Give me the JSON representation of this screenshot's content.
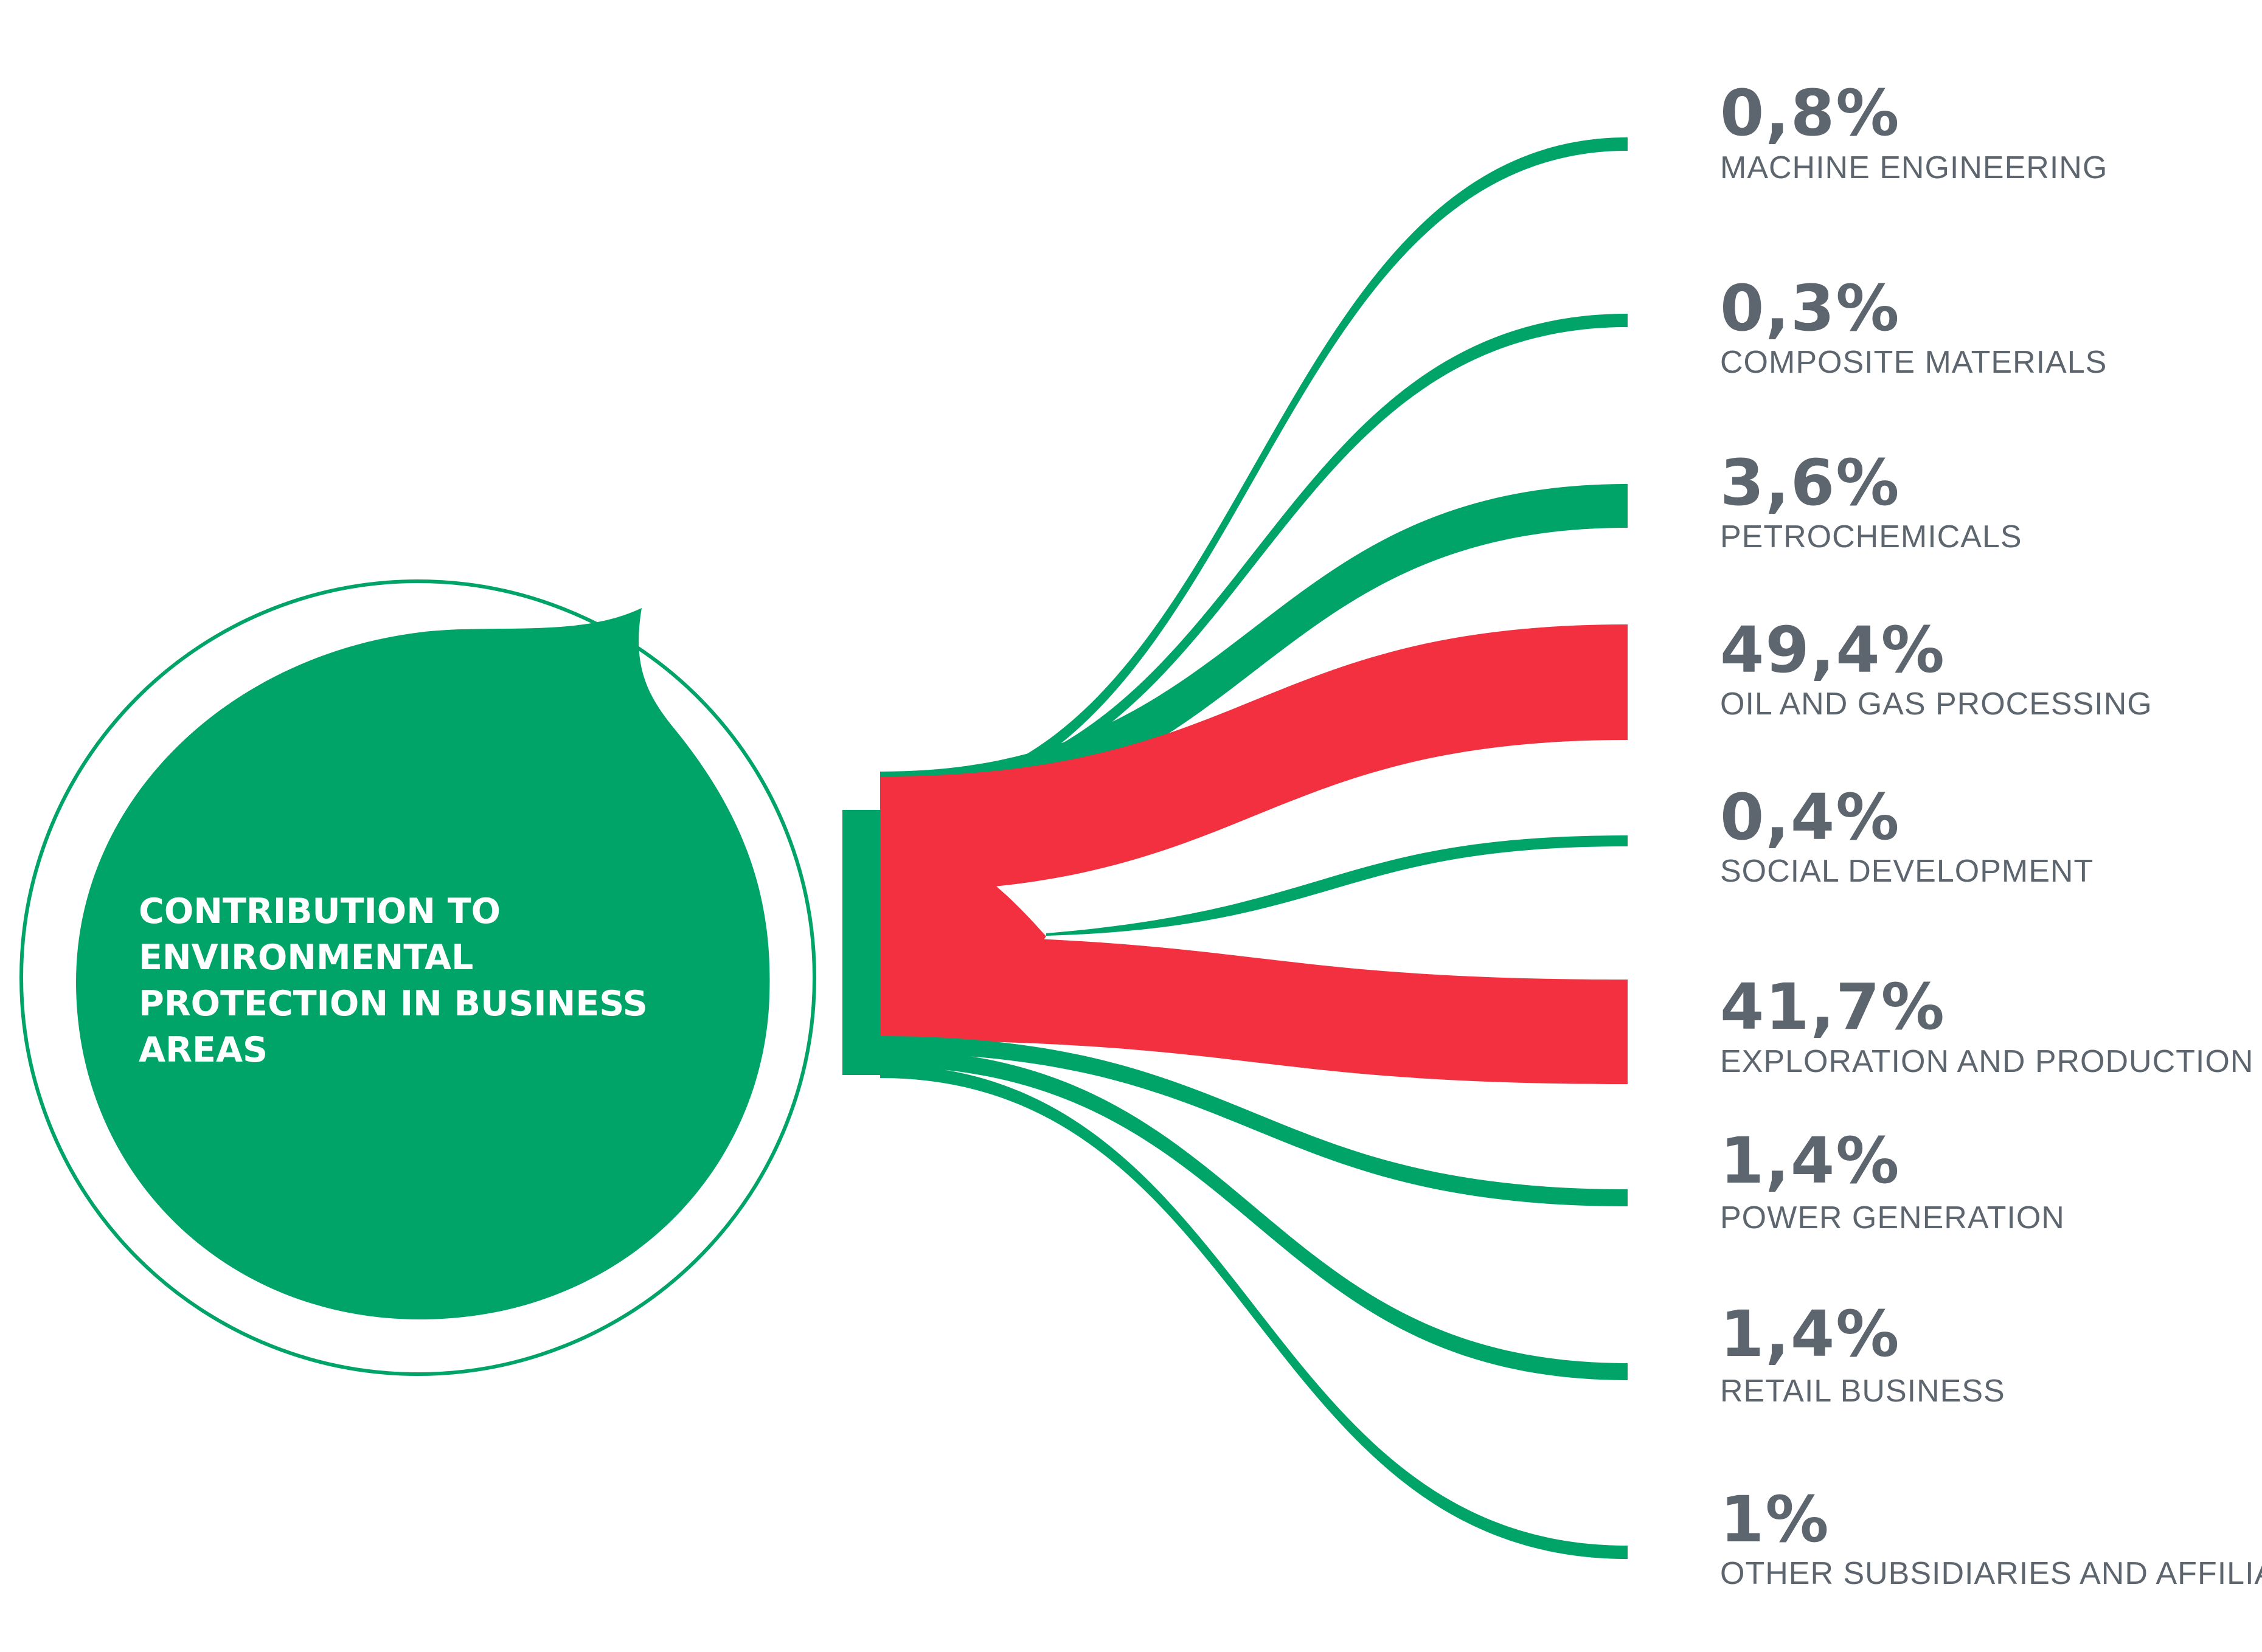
{
  "diagram": {
    "title_lines": [
      "CONTRIBUTION TO",
      "ENVIRONMENTAL",
      "PROTECTION IN BUSINESS",
      "AREAS"
    ],
    "colors": {
      "green": "#00a468",
      "red": "#f2303f",
      "text": "#5d666e",
      "title_text": "#ffffff"
    },
    "branches": [
      {
        "value": "0,8%",
        "label": "MACHINE ENGINEERING",
        "highlight": false
      },
      {
        "value": "0,3%",
        "label": "COMPOSITE MATERIALS",
        "highlight": false
      },
      {
        "value": "3,6%",
        "label": "PETROCHEMICALS",
        "highlight": false
      },
      {
        "value": "49,4%",
        "label": "OIL AND GAS PROCESSING",
        "highlight": true
      },
      {
        "value": "0,4%",
        "label": "SOCIAL DEVELOPMENT",
        "highlight": false
      },
      {
        "value": "41,7%",
        "label": "EXPLORATION AND PRODUCTION",
        "highlight": true
      },
      {
        "value": "1,4%",
        "label": "POWER GENERATION",
        "highlight": false
      },
      {
        "value": "1,4%",
        "label": "RETAIL BUSINESS",
        "highlight": false
      },
      {
        "value": "1%",
        "label": "OTHER SUBSIDIARIES AND AFFILIATES",
        "highlight": false
      }
    ]
  }
}
